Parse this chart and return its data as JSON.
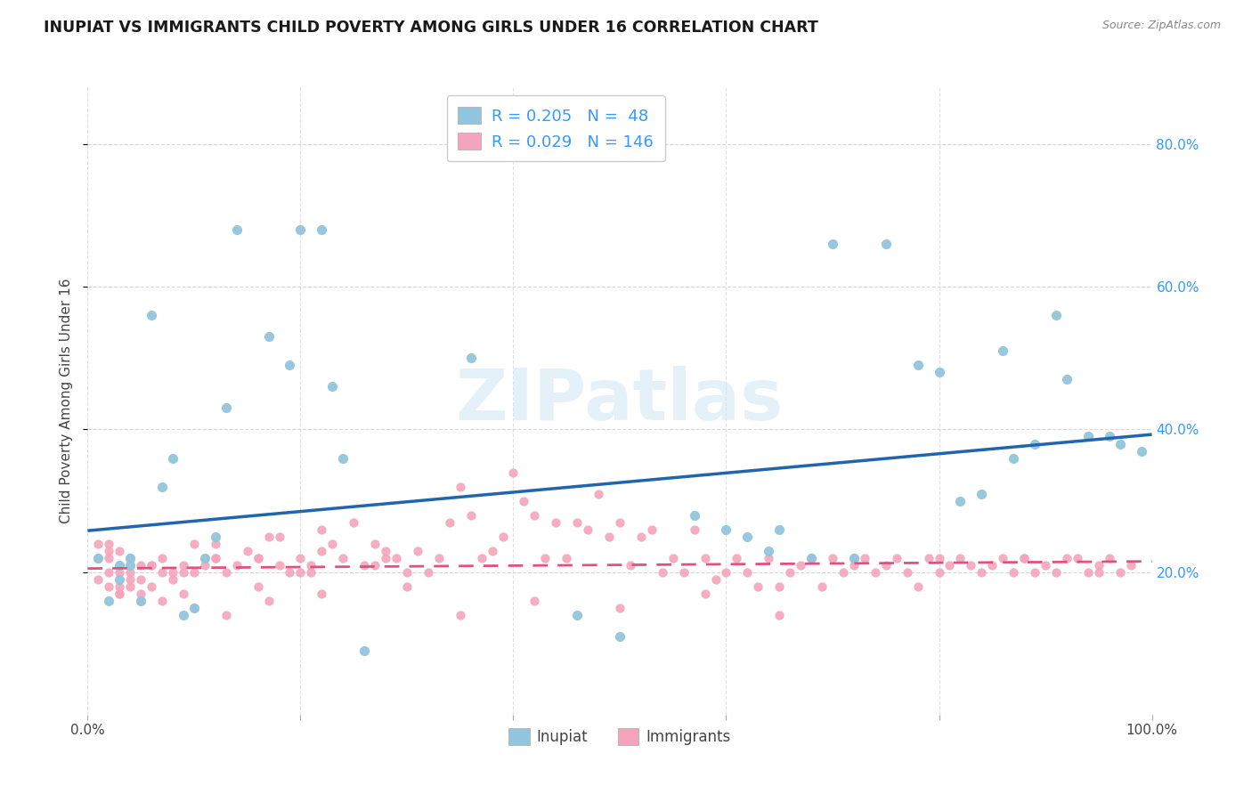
{
  "title": "INUPIAT VS IMMIGRANTS CHILD POVERTY AMONG GIRLS UNDER 16 CORRELATION CHART",
  "source": "Source: ZipAtlas.com",
  "ylabel": "Child Poverty Among Girls Under 16",
  "xlim": [
    0,
    1
  ],
  "ylim": [
    0,
    0.88
  ],
  "yticks": [
    0.2,
    0.4,
    0.6,
    0.8
  ],
  "yticklabels": [
    "20.0%",
    "40.0%",
    "60.0%",
    "80.0%"
  ],
  "xtick_left_label": "0.0%",
  "xtick_right_label": "100.0%",
  "inupiat_color": "#92c5de",
  "immigrants_color": "#f4a4bc",
  "trend_inupiat_color": "#2166ac",
  "trend_immigrants_color": "#e05080",
  "tick_label_color": "#3399ff",
  "R_inupiat": 0.205,
  "N_inupiat": 48,
  "R_immigrants": 0.029,
  "N_immigrants": 146,
  "watermark": "ZIPatlas",
  "background_color": "#ffffff",
  "grid_color": "#cccccc",
  "slope_inupiat": 0.135,
  "intercept_inupiat": 0.258,
  "slope_immigrants": 0.01,
  "intercept_immigrants": 0.205,
  "inupiat_x": [
    0.01,
    0.02,
    0.03,
    0.03,
    0.04,
    0.04,
    0.05,
    0.06,
    0.07,
    0.08,
    0.09,
    0.1,
    0.11,
    0.12,
    0.13,
    0.14,
    0.17,
    0.19,
    0.2,
    0.22,
    0.23,
    0.24,
    0.26,
    0.36,
    0.46,
    0.5,
    0.57,
    0.6,
    0.62,
    0.64,
    0.65,
    0.68,
    0.7,
    0.72,
    0.75,
    0.78,
    0.8,
    0.82,
    0.84,
    0.86,
    0.87,
    0.89,
    0.91,
    0.92,
    0.94,
    0.96,
    0.97,
    0.99
  ],
  "inupiat_y": [
    0.22,
    0.16,
    0.21,
    0.19,
    0.22,
    0.21,
    0.16,
    0.56,
    0.32,
    0.36,
    0.14,
    0.15,
    0.22,
    0.25,
    0.43,
    0.68,
    0.53,
    0.49,
    0.68,
    0.68,
    0.46,
    0.36,
    0.09,
    0.5,
    0.14,
    0.11,
    0.28,
    0.26,
    0.25,
    0.23,
    0.26,
    0.22,
    0.66,
    0.22,
    0.66,
    0.49,
    0.48,
    0.3,
    0.31,
    0.51,
    0.36,
    0.38,
    0.56,
    0.47,
    0.39,
    0.39,
    0.38,
    0.37
  ],
  "immigrants_x": [
    0.01,
    0.01,
    0.01,
    0.02,
    0.02,
    0.02,
    0.02,
    0.03,
    0.03,
    0.03,
    0.03,
    0.04,
    0.04,
    0.04,
    0.05,
    0.05,
    0.05,
    0.06,
    0.06,
    0.07,
    0.07,
    0.08,
    0.08,
    0.09,
    0.09,
    0.1,
    0.1,
    0.11,
    0.11,
    0.12,
    0.12,
    0.13,
    0.14,
    0.15,
    0.16,
    0.16,
    0.17,
    0.18,
    0.18,
    0.19,
    0.2,
    0.2,
    0.21,
    0.22,
    0.22,
    0.23,
    0.24,
    0.25,
    0.26,
    0.27,
    0.28,
    0.29,
    0.3,
    0.3,
    0.31,
    0.32,
    0.33,
    0.34,
    0.35,
    0.36,
    0.37,
    0.38,
    0.39,
    0.4,
    0.41,
    0.42,
    0.43,
    0.44,
    0.45,
    0.46,
    0.47,
    0.48,
    0.49,
    0.5,
    0.51,
    0.52,
    0.53,
    0.54,
    0.55,
    0.56,
    0.57,
    0.58,
    0.59,
    0.6,
    0.61,
    0.62,
    0.63,
    0.64,
    0.65,
    0.66,
    0.67,
    0.68,
    0.69,
    0.7,
    0.71,
    0.72,
    0.73,
    0.74,
    0.75,
    0.76,
    0.77,
    0.78,
    0.79,
    0.8,
    0.81,
    0.82,
    0.83,
    0.84,
    0.85,
    0.86,
    0.87,
    0.88,
    0.89,
    0.9,
    0.91,
    0.92,
    0.93,
    0.94,
    0.95,
    0.96,
    0.97,
    0.98,
    0.03,
    0.05,
    0.07,
    0.1,
    0.13,
    0.17,
    0.22,
    0.28,
    0.35,
    0.42,
    0.5,
    0.58,
    0.65,
    0.72,
    0.8,
    0.88,
    0.95,
    0.02,
    0.04,
    0.06,
    0.09,
    0.12,
    0.16,
    0.21,
    0.27
  ],
  "immigrants_y": [
    0.24,
    0.22,
    0.19,
    0.23,
    0.2,
    0.18,
    0.24,
    0.18,
    0.17,
    0.2,
    0.23,
    0.19,
    0.22,
    0.18,
    0.17,
    0.21,
    0.19,
    0.18,
    0.21,
    0.22,
    0.2,
    0.2,
    0.19,
    0.17,
    0.21,
    0.24,
    0.2,
    0.21,
    0.22,
    0.22,
    0.24,
    0.2,
    0.21,
    0.23,
    0.22,
    0.18,
    0.25,
    0.21,
    0.25,
    0.2,
    0.22,
    0.2,
    0.21,
    0.26,
    0.23,
    0.24,
    0.22,
    0.27,
    0.21,
    0.24,
    0.23,
    0.22,
    0.2,
    0.18,
    0.23,
    0.2,
    0.22,
    0.27,
    0.32,
    0.28,
    0.22,
    0.23,
    0.25,
    0.34,
    0.3,
    0.28,
    0.22,
    0.27,
    0.22,
    0.27,
    0.26,
    0.31,
    0.25,
    0.27,
    0.21,
    0.25,
    0.26,
    0.2,
    0.22,
    0.2,
    0.26,
    0.22,
    0.19,
    0.2,
    0.22,
    0.2,
    0.18,
    0.22,
    0.18,
    0.2,
    0.21,
    0.22,
    0.18,
    0.22,
    0.2,
    0.21,
    0.22,
    0.2,
    0.21,
    0.22,
    0.2,
    0.18,
    0.22,
    0.2,
    0.21,
    0.22,
    0.21,
    0.2,
    0.21,
    0.22,
    0.2,
    0.22,
    0.2,
    0.21,
    0.2,
    0.22,
    0.22,
    0.2,
    0.21,
    0.22,
    0.2,
    0.21,
    0.17,
    0.16,
    0.16,
    0.15,
    0.14,
    0.16,
    0.17,
    0.22,
    0.14,
    0.16,
    0.15,
    0.17,
    0.14,
    0.22,
    0.22,
    0.22,
    0.2,
    0.22,
    0.2,
    0.21,
    0.2,
    0.22,
    0.22,
    0.2,
    0.21
  ]
}
